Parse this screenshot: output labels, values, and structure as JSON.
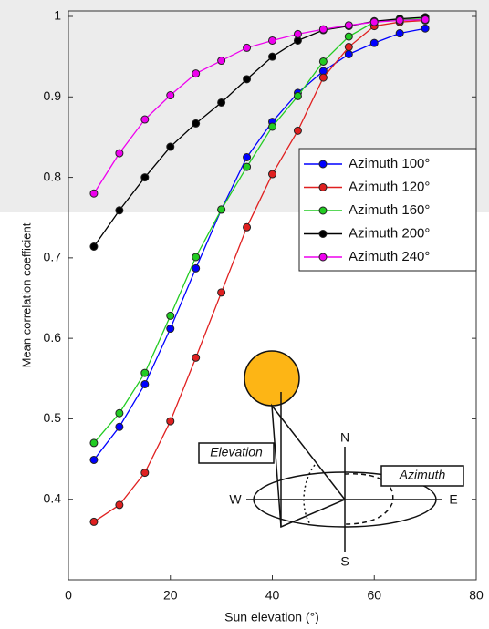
{
  "chart_data": {
    "type": "line",
    "xlabel": "Sun elevation (°)",
    "ylabel": "Mean correlation coefficient",
    "x": [
      5,
      10,
      15,
      20,
      25,
      30,
      35,
      40,
      45,
      50,
      55,
      60,
      65,
      70
    ],
    "series": [
      {
        "name": "Azimuth 100°",
        "color": "#0000ff",
        "values": [
          0.449,
          0.49,
          0.543,
          0.612,
          0.687,
          0.76,
          0.825,
          0.869,
          0.905,
          0.932,
          0.953,
          0.967,
          0.979,
          0.985
        ]
      },
      {
        "name": "Azimuth 120°",
        "color": "#e02020",
        "values": [
          0.372,
          0.393,
          0.433,
          0.497,
          0.576,
          0.657,
          0.738,
          0.804,
          0.858,
          0.924,
          0.962,
          0.988,
          0.993,
          0.995
        ]
      },
      {
        "name": "Azimuth 160°",
        "color": "#22cc22",
        "values": [
          0.47,
          0.507,
          0.557,
          0.628,
          0.701,
          0.76,
          0.813,
          0.863,
          0.901,
          0.944,
          0.975,
          0.993,
          0.996,
          0.997
        ]
      },
      {
        "name": "Azimuth 200°",
        "color": "#000000",
        "values": [
          0.714,
          0.759,
          0.8,
          0.838,
          0.867,
          0.893,
          0.922,
          0.95,
          0.97,
          0.983,
          0.988,
          0.994,
          0.997,
          0.999
        ]
      },
      {
        "name": "Azimuth 240°",
        "color": "#ee00ee",
        "values": [
          0.78,
          0.83,
          0.872,
          0.902,
          0.929,
          0.945,
          0.961,
          0.97,
          0.978,
          0.984,
          0.989,
          0.993,
          0.995,
          0.996
        ]
      }
    ],
    "xlim": [
      0,
      80
    ],
    "xticks": [
      0,
      20,
      40,
      60,
      80
    ],
    "ylim": [
      0.3,
      1
    ],
    "yticks": [
      0.4,
      0.5,
      0.6,
      0.7,
      0.8,
      0.9,
      1
    ],
    "legend": "upper-right",
    "annotations": [
      "Elevation",
      "Azimuth",
      "N",
      "S",
      "W",
      "E"
    ]
  }
}
